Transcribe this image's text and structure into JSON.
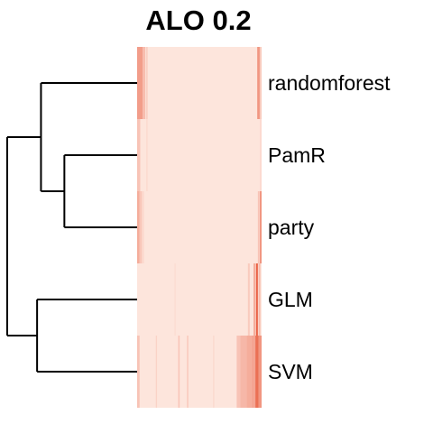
{
  "chart_data": {
    "type": "heatmap",
    "title": "ALO 0.2",
    "rows": [
      "randomforest",
      "PamR",
      "party",
      "GLM",
      "SVM"
    ],
    "dendrogram": {
      "side": "left",
      "merges": [
        {
          "members": [
            "PamR",
            "party"
          ],
          "height": 0.56
        },
        {
          "members": [
            "randomforest",
            "PamR",
            "party"
          ],
          "height": 0.74
        },
        {
          "members": [
            "GLM",
            "SVM"
          ],
          "height": 0.77
        },
        {
          "members": [
            "randomforest",
            "PamR",
            "party",
            "GLM",
            "SVM"
          ],
          "height": 1.0
        }
      ]
    },
    "color_scale": {
      "low": "#fff1ea",
      "high": "#e8593b"
    },
    "base_intensity": 0.08,
    "stripes": [
      {
        "row": "randomforest",
        "pos": 0.0,
        "width": 0.045,
        "intensity": 0.55
      },
      {
        "row": "randomforest",
        "pos": 0.045,
        "width": 0.02,
        "intensity": 0.35
      },
      {
        "row": "randomforest",
        "pos": 0.07,
        "width": 0.015,
        "intensity": 0.22
      },
      {
        "row": "randomforest",
        "pos": 0.965,
        "width": 0.02,
        "intensity": 0.6
      },
      {
        "row": "randomforest",
        "pos": 0.985,
        "width": 0.015,
        "intensity": 0.25
      },
      {
        "row": "PamR",
        "pos": 0.0,
        "width": 0.025,
        "intensity": 0.3
      },
      {
        "row": "PamR",
        "pos": 0.075,
        "width": 0.008,
        "intensity": 0.18
      },
      {
        "row": "PamR",
        "pos": 0.985,
        "width": 0.015,
        "intensity": 0.15
      },
      {
        "row": "party",
        "pos": 0.0,
        "width": 0.02,
        "intensity": 0.45
      },
      {
        "row": "party",
        "pos": 0.02,
        "width": 0.02,
        "intensity": 0.28
      },
      {
        "row": "party",
        "pos": 0.045,
        "width": 0.01,
        "intensity": 0.18
      },
      {
        "row": "party",
        "pos": 0.97,
        "width": 0.012,
        "intensity": 0.3
      },
      {
        "row": "party",
        "pos": 0.985,
        "width": 0.015,
        "intensity": 0.6
      },
      {
        "row": "GLM",
        "pos": 0.3,
        "width": 0.01,
        "intensity": 0.14
      },
      {
        "row": "GLM",
        "pos": 0.89,
        "width": 0.015,
        "intensity": 0.25
      },
      {
        "row": "GLM",
        "pos": 0.935,
        "width": 0.015,
        "intensity": 0.45
      },
      {
        "row": "GLM",
        "pos": 0.955,
        "width": 0.015,
        "intensity": 0.95
      },
      {
        "row": "GLM",
        "pos": 0.975,
        "width": 0.015,
        "intensity": 0.35
      },
      {
        "row": "SVM",
        "pos": 0.0,
        "width": 0.02,
        "intensity": 0.3
      },
      {
        "row": "SVM",
        "pos": 0.15,
        "width": 0.01,
        "intensity": 0.2
      },
      {
        "row": "SVM",
        "pos": 0.33,
        "width": 0.012,
        "intensity": 0.28
      },
      {
        "row": "SVM",
        "pos": 0.4,
        "width": 0.012,
        "intensity": 0.25
      },
      {
        "row": "SVM",
        "pos": 0.61,
        "width": 0.01,
        "intensity": 0.16
      },
      {
        "row": "SVM",
        "pos": 0.8,
        "width": 0.03,
        "intensity": 0.3
      },
      {
        "row": "SVM",
        "pos": 0.83,
        "width": 0.05,
        "intensity": 0.38
      },
      {
        "row": "SVM",
        "pos": 0.88,
        "width": 0.04,
        "intensity": 0.45
      },
      {
        "row": "SVM",
        "pos": 0.92,
        "width": 0.03,
        "intensity": 0.5
      },
      {
        "row": "SVM",
        "pos": 0.95,
        "width": 0.025,
        "intensity": 0.85
      },
      {
        "row": "SVM",
        "pos": 0.975,
        "width": 0.025,
        "intensity": 0.6
      }
    ]
  }
}
